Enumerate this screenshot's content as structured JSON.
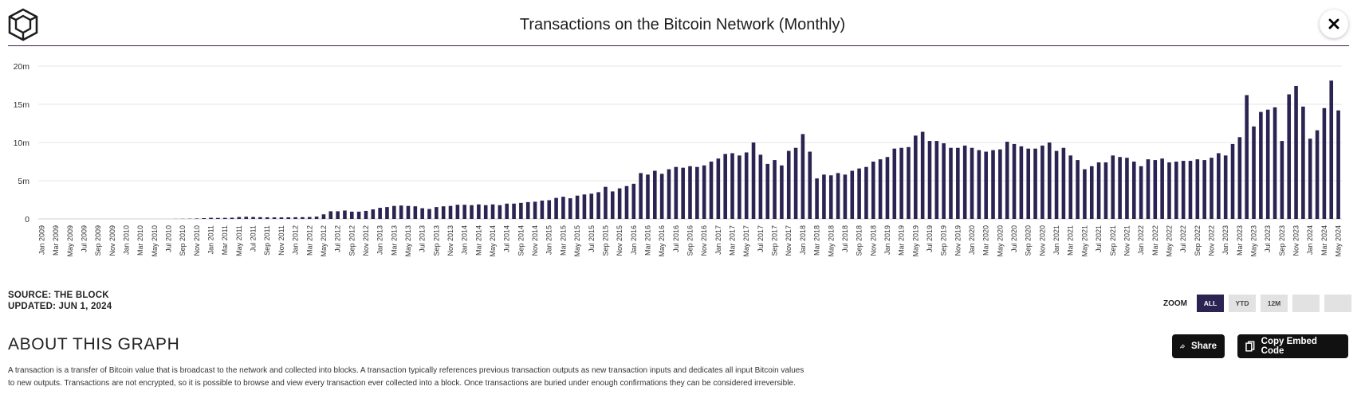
{
  "header": {
    "title": "Transactions on the Bitcoin Network (Monthly)",
    "close_icon": "close-icon",
    "logo_icon": "cube-logo-icon"
  },
  "source": {
    "line1": "SOURCE: THE BLOCK",
    "line2": "UPDATED: JUN 1, 2024"
  },
  "zoom": {
    "label": "ZOOM",
    "buttons": [
      "ALL",
      "YTD",
      "12M",
      "",
      ""
    ],
    "active": "ALL"
  },
  "about": {
    "title": "ABOUT THIS GRAPH",
    "text_line1": "A transaction is a transfer of Bitcoin value that is broadcast to the network and collected into blocks. A transaction typically references previous transaction outputs as new transaction inputs and dedicates all input Bitcoin values",
    "text_line2": "to new outputs. Transactions are not encrypted, so it is possible to browse and view every transaction ever collected into a block. Once transactions are buried under enough confirmations they can be considered irreversible."
  },
  "actions": {
    "share_label": "Share",
    "embed_label": "Copy Embed Code",
    "share_icon": "share-arrow-icon",
    "embed_icon": "copy-icon"
  },
  "colors": {
    "bar": "#2b2352",
    "title_rule": "#3a1d4a",
    "grid": "#e6e6e6",
    "button_dark": "#111111",
    "zoom_active": "#2b2352"
  },
  "chart_data": {
    "type": "bar",
    "title": "Transactions on the Bitcoin Network (Monthly)",
    "xlabel": "",
    "ylabel": "",
    "ylim": [
      0,
      20000000
    ],
    "y_ticks": [
      0,
      5000000,
      10000000,
      15000000,
      20000000
    ],
    "y_tick_labels": [
      "0",
      "5m",
      "10m",
      "15m",
      "20m"
    ],
    "grid": true,
    "x_start": "Jan 2009",
    "x_end": "May 2024",
    "x_tick_labels": [
      "Jan 2009",
      "Mar 2009",
      "May 2009",
      "Jul 2009",
      "Sep 2009",
      "Nov 2009",
      "Jan 2010",
      "Mar 2010",
      "May 2010",
      "Jul 2010",
      "Sep 2010",
      "Nov 2010",
      "Jan 2011",
      "Mar 2011",
      "May 2011",
      "Jul 2011",
      "Sep 2011",
      "Nov 2011",
      "Jan 2012",
      "Mar 2012",
      "May 2012",
      "Jul 2012",
      "Sep 2012",
      "Nov 2012",
      "Jan 2013",
      "Mar 2013",
      "May 2013",
      "Jul 2013",
      "Sep 2013",
      "Nov 2013",
      "Jan 2014",
      "Mar 2014",
      "May 2014",
      "Jul 2014",
      "Sep 2014",
      "Nov 2014",
      "Jan 2015",
      "Mar 2015",
      "May 2015",
      "Jul 2015",
      "Sep 2015",
      "Nov 2015",
      "Jan 2016",
      "Mar 2016",
      "May 2016",
      "Jul 2016",
      "Sep 2016",
      "Nov 2016",
      "Jan 2017",
      "Mar 2017",
      "May 2017",
      "Jul 2017",
      "Sep 2017",
      "Nov 2017",
      "Jan 2018",
      "Mar 2018",
      "May 2018",
      "Jul 2018",
      "Sep 2018",
      "Nov 2018",
      "Jan 2019",
      "Mar 2019",
      "May 2019",
      "Jul 2019",
      "Sep 2019",
      "Nov 2019",
      "Jan 2020",
      "Mar 2020",
      "May 2020",
      "Jul 2020",
      "Sep 2020",
      "Nov 2020",
      "Jan 2021",
      "Mar 2021",
      "May 2021",
      "Jul 2021",
      "Sep 2021",
      "Nov 2021",
      "Jan 2022",
      "Mar 2022",
      "May 2022",
      "Jul 2022",
      "Sep 2022",
      "Nov 2022",
      "Jan 2023",
      "Mar 2023",
      "May 2023",
      "Jul 2023",
      "Sep 2023",
      "Nov 2023",
      "Jan 2024",
      "Mar 2024",
      "May 2024"
    ],
    "values": [
      0,
      0,
      0,
      0,
      0,
      0,
      0,
      0,
      0,
      0,
      0,
      0,
      0,
      0,
      0,
      0,
      0,
      0,
      0,
      10000,
      20000,
      30000,
      60000,
      100000,
      150000,
      130000,
      140000,
      160000,
      250000,
      280000,
      250000,
      230000,
      210000,
      200000,
      200000,
      210000,
      220000,
      230000,
      250000,
      300000,
      600000,
      1000000,
      1000000,
      1100000,
      950000,
      950000,
      1050000,
      1250000,
      1450000,
      1550000,
      1700000,
      1750000,
      1700000,
      1650000,
      1400000,
      1300000,
      1550000,
      1650000,
      1700000,
      1850000,
      1850000,
      1800000,
      1900000,
      1800000,
      1900000,
      1800000,
      2000000,
      2000000,
      2100000,
      2200000,
      2250000,
      2400000,
      2450000,
      2750000,
      2900000,
      2700000,
      3050000,
      3200000,
      3300000,
      3500000,
      4200000,
      3600000,
      4000000,
      4300000,
      4600000,
      6000000,
      5800000,
      6300000,
      5900000,
      6500000,
      6800000,
      6700000,
      6900000,
      6800000,
      7000000,
      7500000,
      7900000,
      8500000,
      8600000,
      8300000,
      8700000,
      10000000,
      8400000,
      7200000,
      7700000,
      7000000,
      8900000,
      9300000,
      11100000,
      8800000,
      5300000,
      5800000,
      5700000,
      6000000,
      5800000,
      6300000,
      6600000,
      6800000,
      7500000,
      7800000,
      8100000,
      9200000,
      9300000,
      9400000,
      10900000,
      11400000,
      10200000,
      10200000,
      9900000,
      9300000,
      9300000,
      9600000,
      9300000,
      9000000,
      8800000,
      9000000,
      9100000,
      10100000,
      9800000,
      9500000,
      9200000,
      9200000,
      9600000,
      10000000,
      8900000,
      9300000,
      8300000,
      7700000,
      6500000,
      6900000,
      7400000,
      7400000,
      8300000,
      8100000,
      8000000,
      7500000,
      6900000,
      7800000,
      7700000,
      7900000,
      7400000,
      7500000,
      7600000,
      7600000,
      7800000,
      7700000,
      8000000,
      8600000,
      8300000,
      9800000,
      10700000,
      16200000,
      12100000,
      14000000,
      14300000,
      14600000,
      10200000,
      16300000,
      17400000,
      14700000,
      10500000,
      11600000,
      14500000,
      18100000,
      14200000
    ]
  }
}
